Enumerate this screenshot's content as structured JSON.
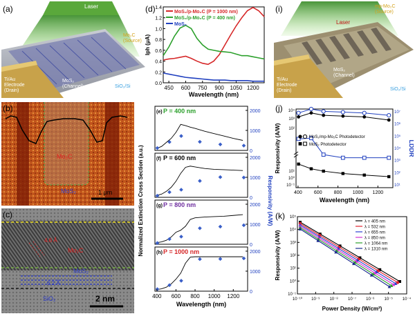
{
  "figure": {
    "labels": [
      "(a)",
      "(b)",
      "(c)",
      "(d)",
      "(i)",
      "(j)",
      "(k)"
    ]
  },
  "panel_a": {
    "laser": "Laser",
    "source": "Mo₂C\n(Source)",
    "drain": "Ti/Au\nElectrode\n(Drain)",
    "channel": "MoS₂\n(Channel)",
    "substrate": "SiO₂/Si"
  },
  "panel_b": {
    "mo2c": "Mo₂C",
    "mos2": "MoS₂",
    "scale": "1 μm"
  },
  "panel_c": {
    "mo2c": "Mo₂C",
    "mos2": "MoS₂",
    "sio2": "SiO₂",
    "d1": "4.6 Å",
    "d2": "6.2 Å",
    "scale": "2 nm"
  },
  "panel_i": {
    "laser": "Laser",
    "source": "mp-Mo₂C\n(Source)",
    "channel": "MoS₂\n(Channel)",
    "drain": "Ti/Au\nElectrode\n(Drain)",
    "substrate": "SiO₂/Si"
  },
  "chart_data": [
    {
      "id": "d",
      "type": "line",
      "ylabel": "Iph (μA)",
      "xlabel": "Wavelength (nm)",
      "xlim": [
        400,
        1300
      ],
      "ylim": [
        0,
        1.4
      ],
      "xticks": [
        "450",
        "600",
        "750",
        "900",
        "1050",
        "1200"
      ],
      "yticks": [
        "0.0",
        "0.2",
        "0.4",
        "0.6",
        "0.8",
        "1.0",
        "1.2",
        "1.4"
      ],
      "series": [
        {
          "name": "MoS₂/p-Mo₂C (P = 1000 nm)",
          "color": "#d62728",
          "x": [
            400,
            450,
            500,
            550,
            600,
            650,
            700,
            750,
            800,
            850,
            900,
            950,
            1000,
            1050,
            1100,
            1150,
            1200,
            1250,
            1300
          ],
          "y": [
            0.42,
            0.44,
            0.45,
            0.47,
            0.49,
            0.45,
            0.4,
            0.36,
            0.34,
            0.4,
            0.52,
            0.7,
            0.88,
            1.05,
            1.2,
            1.33,
            1.39,
            1.33,
            1.22
          ]
        },
        {
          "name": "MoS₂/p-Mo₂C (P = 400 nm)",
          "color": "#2ca02c",
          "x": [
            400,
            450,
            500,
            550,
            600,
            650,
            700,
            750,
            800,
            850,
            900,
            950,
            1000,
            1050,
            1100,
            1150,
            1200,
            1250,
            1300
          ],
          "y": [
            0.5,
            0.66,
            0.86,
            1.01,
            1.06,
            1.0,
            0.82,
            0.7,
            0.62,
            0.6,
            0.58,
            0.57,
            0.56,
            0.53,
            0.5,
            0.5,
            0.48,
            0.46,
            0.44
          ]
        },
        {
          "name": "MoS₂",
          "color": "#1f3fbf",
          "x": [
            400,
            450,
            500,
            550,
            600,
            650,
            700,
            750,
            800,
            850,
            900,
            950,
            1000,
            1050,
            1100,
            1150,
            1200,
            1250,
            1300
          ],
          "y": [
            0.18,
            0.16,
            0.14,
            0.12,
            0.1,
            0.09,
            0.08,
            0.07,
            0.06,
            0.05,
            0.05,
            0.05,
            0.04,
            0.04,
            0.04,
            0.04,
            0.03,
            0.03,
            0.03
          ]
        }
      ]
    },
    {
      "id": "e-h",
      "type": "line",
      "ylabel": "Normalized Extinction Cross Section (a.u.)",
      "y2label": "Responsivity (A/W)",
      "xlabel": "Wavelength (nm)",
      "xticks": [
        "400",
        "600",
        "800",
        "1000",
        "1200"
      ],
      "y2ticks": [
        "0",
        "1000",
        "2000"
      ],
      "xlim": [
        380,
        1350
      ],
      "y2lim": [
        0,
        2000
      ],
      "panels": [
        {
          "tag": "(e)",
          "label": "P = 400 nm",
          "color": "#2ca02c",
          "curve_x": [
            400,
            450,
            500,
            550,
            600,
            650,
            700,
            750,
            800,
            900,
            1000,
            1100,
            1200,
            1300
          ],
          "curve_y": [
            0.05,
            0.1,
            0.2,
            0.3,
            0.45,
            0.65,
            0.62,
            0.58,
            0.55,
            0.48,
            0.42,
            0.36,
            0.3,
            0.25
          ],
          "points_x": [
            405,
            532,
            655,
            850,
            1064,
            1310
          ],
          "points_y": [
            120,
            420,
            720,
            430,
            300,
            240
          ]
        },
        {
          "tag": "(f)",
          "label": "P = 600 nm",
          "color": "#000000",
          "curve_x": [
            400,
            450,
            500,
            550,
            600,
            650,
            700,
            750,
            800,
            900,
            1000,
            1100,
            1200,
            1300
          ],
          "curve_y": [
            0.05,
            0.08,
            0.15,
            0.25,
            0.4,
            0.6,
            0.75,
            0.78,
            0.76,
            0.72,
            0.7,
            0.69,
            0.68,
            0.67
          ],
          "points_x": [
            405,
            532,
            655,
            850,
            1064,
            1310
          ],
          "points_y": [
            80,
            260,
            380,
            820,
            1010,
            990
          ]
        },
        {
          "tag": "(g)",
          "label": "P = 800 nm",
          "color": "#7030a0",
          "curve_x": [
            400,
            450,
            500,
            550,
            600,
            650,
            700,
            750,
            800,
            900,
            1000,
            1100,
            1200,
            1300
          ],
          "curve_y": [
            0.04,
            0.06,
            0.1,
            0.18,
            0.3,
            0.35,
            0.45,
            0.62,
            0.66,
            0.68,
            0.69,
            0.7,
            0.72,
            0.74
          ],
          "points_x": [
            405,
            532,
            655,
            850,
            1064,
            1310
          ],
          "points_y": [
            60,
            260,
            380,
            800,
            880,
            950
          ]
        },
        {
          "tag": "(h)",
          "label": "P = 1000 nm",
          "color": "#d62728",
          "curve_x": [
            400,
            450,
            500,
            550,
            600,
            650,
            700,
            750,
            800,
            900,
            1000,
            1100,
            1200,
            1300
          ],
          "curve_y": [
            0.04,
            0.06,
            0.1,
            0.18,
            0.3,
            0.45,
            0.7,
            0.85,
            0.86,
            0.86,
            0.86,
            0.86,
            0.86,
            0.86
          ],
          "points_x": [
            405,
            532,
            655,
            850,
            1064,
            1310
          ],
          "points_y": [
            100,
            300,
            520,
            1600,
            1610,
            1640
          ]
        }
      ]
    },
    {
      "id": "j",
      "type": "line",
      "ylabel": "Responsivity (A/W)",
      "y2label": "LDDR",
      "xlabel": "Wavelength (nm)",
      "xticks": [
        "400",
        "600",
        "800",
        "1000",
        "1200"
      ],
      "xlim": [
        380,
        1350
      ],
      "yticks": [
        "10¹",
        "10⁰",
        "10⁻¹",
        "10²",
        "10³",
        "10⁴"
      ],
      "y2ticks": [
        "10¹",
        "10²",
        "10³",
        "10⁴",
        "10⁵",
        "10⁶",
        "10⁷"
      ],
      "legend": [
        "MoS₂/mp-Mo₂C Photodetector",
        "MoS₂ Photodetector"
      ],
      "series": [
        {
          "name": "mp top filled",
          "x": [
            405,
            532,
            655,
            850,
            1064,
            1310
          ],
          "y": [
            0.9,
            0.95,
            0.92,
            0.91,
            0.9,
            0.86
          ]
        },
        {
          "name": "mp top open",
          "x": [
            405,
            532,
            655,
            850,
            1064,
            1310
          ],
          "y": [
            0.95,
            1.0,
            0.97,
            0.96,
            0.95,
            0.92
          ]
        },
        {
          "name": "MoS₂ open",
          "x": [
            405,
            532,
            655,
            850,
            1064,
            1310
          ],
          "y": [
            0.62,
            0.63,
            0.42,
            0.38,
            0.38,
            0.38
          ]
        },
        {
          "name": "MoS₂ filled",
          "x": [
            405,
            532,
            655,
            850,
            1064,
            1310
          ],
          "y": [
            0.3,
            0.24,
            0.21,
            0.18,
            0.16,
            0.14
          ]
        }
      ]
    },
    {
      "id": "k",
      "type": "line",
      "ylabel": "Responsivity (A/W)",
      "xlabel": "Power Density (W/cm²)",
      "xticks": [
        "10⁻¹⁰",
        "10⁻⁹",
        "10⁻⁸",
        "10⁻⁷",
        "10⁻⁶",
        "10⁻⁵",
        "10⁻⁴"
      ],
      "yticks": [
        "10⁵",
        "10⁴",
        "10³",
        "10²",
        "10¹",
        "10⁰",
        "10⁻¹"
      ],
      "series": [
        {
          "name": "λ = 405 nm",
          "color": "#000000",
          "marker": "square"
        },
        {
          "name": "λ = 532 nm",
          "color": "#e0202a",
          "marker": "circle"
        },
        {
          "name": "λ = 655 nm",
          "color": "#2b3fd1",
          "marker": "triangle"
        },
        {
          "name": "λ = 850 nm",
          "color": "#d22fd2",
          "marker": "triangle"
        },
        {
          "name": "λ = 1064 nm",
          "color": "#2ca02c",
          "marker": "triangle"
        },
        {
          "name": "λ = 1310 nm",
          "color": "#1a2a8f",
          "marker": "triangle"
        }
      ]
    }
  ]
}
